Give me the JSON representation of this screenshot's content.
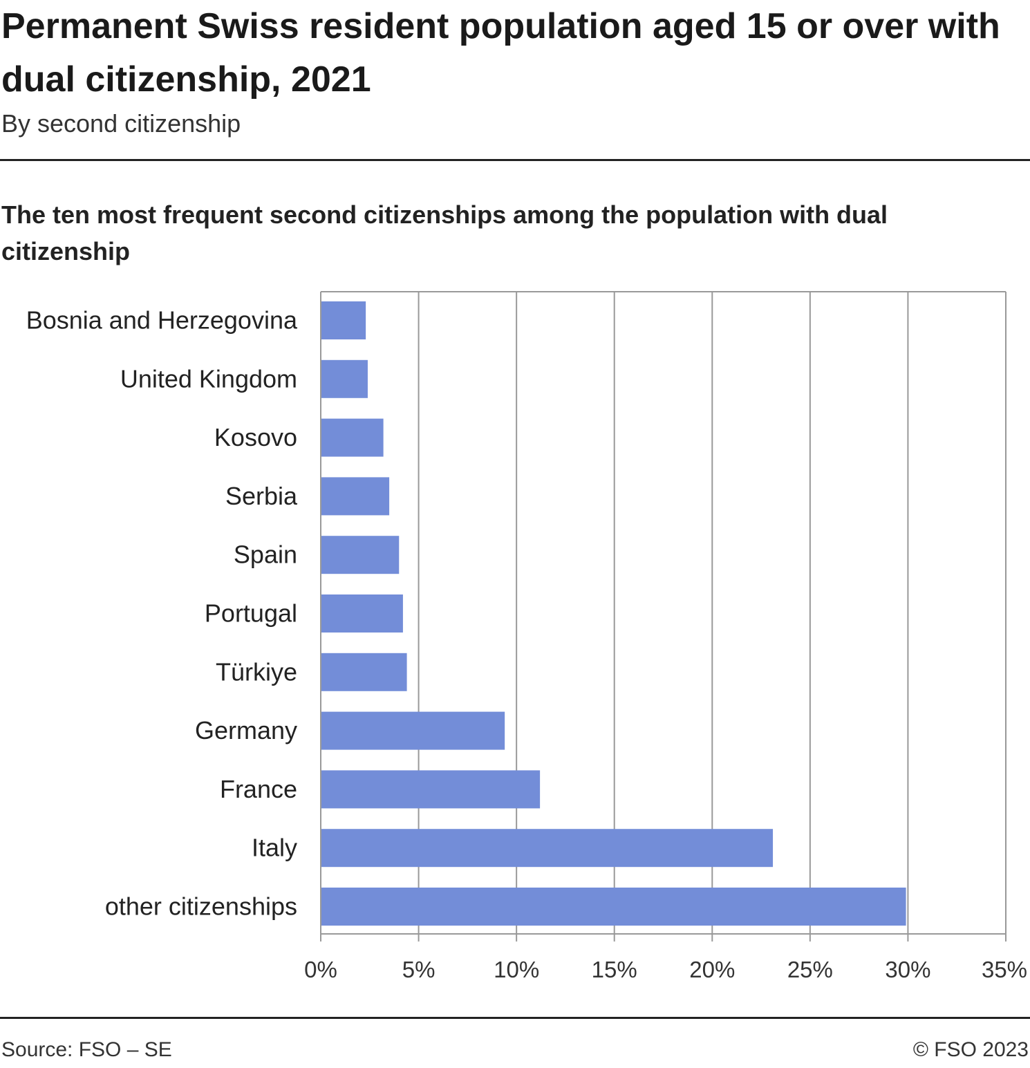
{
  "header": {
    "title": "Permanent Swiss resident population aged 15 or over with dual citizenship, 2021",
    "subtitle": "By second citizenship"
  },
  "footer": {
    "source": "Source: FSO – SE",
    "copyright": "© FSO 2023"
  },
  "colors": {
    "bar": "#738dd8",
    "grid": "#999999"
  },
  "chart_data": {
    "type": "bar",
    "orientation": "horizontal",
    "title": "The ten most frequent second citizenships among the population with dual citizenship",
    "categories": [
      "Bosnia and Herzegovina",
      "United Kingdom",
      "Kosovo",
      "Serbia",
      "Spain",
      "Portugal",
      "Türkiye",
      "Germany",
      "France",
      "Italy",
      "other citizenships"
    ],
    "values": [
      2.3,
      2.4,
      3.2,
      3.5,
      4.0,
      4.2,
      4.4,
      9.4,
      11.2,
      23.1,
      29.9
    ],
    "unit": "%",
    "xlim": [
      0,
      35
    ],
    "xticks": [
      "0%",
      "5%",
      "10%",
      "15%",
      "20%",
      "25%",
      "30%",
      "35%"
    ],
    "grid": true,
    "legend": "none"
  }
}
